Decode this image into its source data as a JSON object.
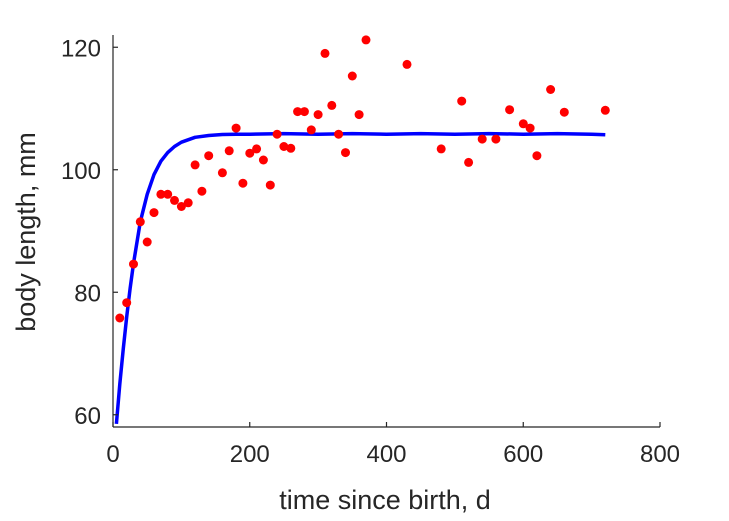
{
  "chart_data": {
    "type": "scatter",
    "xlabel": "time since birth, d",
    "ylabel": "body length, mm",
    "xlim": [
      0,
      800
    ],
    "ylim": [
      58,
      122
    ],
    "xticks": [
      0,
      200,
      400,
      600,
      800
    ],
    "yticks": [
      60,
      80,
      100,
      120
    ],
    "grid": false,
    "colors": {
      "points": "#ff0000",
      "curve": "#0000ff",
      "axes": "#262626"
    },
    "series": [
      {
        "kind": "points",
        "x": [
          10,
          20,
          30,
          40,
          50,
          60,
          70,
          80,
          90,
          100,
          110,
          120,
          130,
          140,
          160,
          170,
          180,
          190,
          200,
          210,
          220,
          230,
          240,
          250,
          260,
          270,
          280,
          290,
          300,
          310,
          320,
          330,
          340,
          350,
          360,
          370,
          430,
          480,
          510,
          520,
          540,
          560,
          580,
          600,
          610,
          620,
          640,
          660,
          720
        ],
        "y": [
          75.8,
          78.3,
          84.6,
          91.5,
          88.2,
          93.0,
          96.0,
          96.0,
          95.0,
          94.0,
          94.6,
          100.8,
          96.5,
          102.3,
          99.5,
          103.1,
          106.8,
          97.8,
          102.7,
          103.4,
          101.6,
          97.5,
          105.8,
          103.8,
          103.5,
          109.5,
          109.5,
          106.5,
          109.0,
          119.0,
          110.5,
          105.8,
          102.8,
          115.3,
          109.0,
          121.2,
          117.2,
          103.4,
          111.2,
          101.2,
          105.0,
          105.0,
          109.8,
          107.5,
          106.8,
          102.3,
          113.1,
          109.4,
          109.7
        ]
      },
      {
        "kind": "curve",
        "x": [
          5,
          10,
          15,
          20,
          25,
          30,
          40,
          50,
          60,
          70,
          80,
          90,
          100,
          120,
          140,
          160,
          180,
          200,
          250,
          300,
          350,
          400,
          450,
          500,
          550,
          600,
          650,
          700,
          720
        ],
        "y": [
          58.5,
          65.0,
          70.8,
          76.0,
          80.6,
          84.7,
          91.5,
          96.0,
          99.2,
          101.4,
          102.8,
          103.8,
          104.5,
          105.3,
          105.6,
          105.75,
          105.8,
          105.8,
          105.9,
          105.8,
          105.9,
          105.8,
          105.9,
          105.8,
          105.9,
          105.8,
          105.9,
          105.8,
          105.7
        ]
      }
    ]
  }
}
